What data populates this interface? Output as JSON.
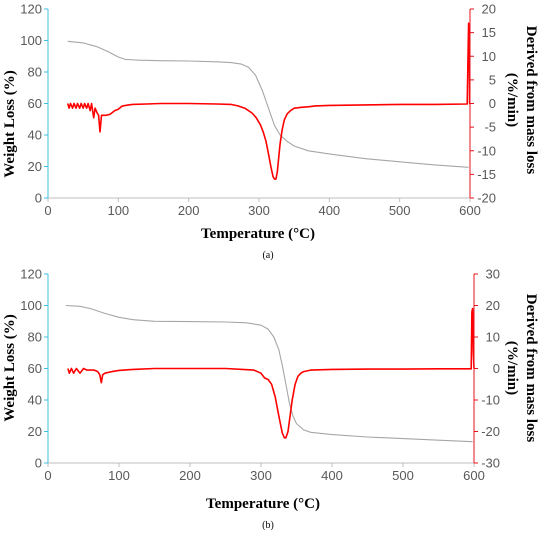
{
  "colors": {
    "left_axis": "#3fbfe3",
    "right_axis": "#e8101b",
    "weight_curve": "#a6a6a6",
    "derivative_curve": "#ff0000",
    "tick_text": "#595959"
  },
  "chart_data": [
    {
      "type": "line",
      "caption": "(a)",
      "xlabel": "Temperature (°C)",
      "ylabel": "Weight Loss (%)",
      "y2label": "Derived from mass loss (%/min)",
      "xlim": [
        0,
        600
      ],
      "ylim": [
        0,
        120
      ],
      "y2lim": [
        -20,
        20
      ],
      "xticks": [
        0,
        100,
        200,
        300,
        400,
        500,
        600
      ],
      "yticks": [
        0,
        20,
        40,
        60,
        80,
        100,
        120
      ],
      "y2ticks": [
        -20,
        -15,
        -10,
        -5,
        0,
        5,
        10,
        15,
        20
      ],
      "grid": false,
      "legend": "none",
      "series": [
        {
          "axis": "left",
          "x": [
            28,
            50,
            70,
            85,
            100,
            110,
            130,
            160,
            200,
            240,
            260,
            275,
            285,
            295,
            305,
            315,
            322,
            330,
            340,
            350,
            370,
            400,
            450,
            500,
            550,
            598
          ],
          "y": [
            99.5,
            98.5,
            96,
            93,
            89.5,
            88,
            87.5,
            87.2,
            87,
            86.5,
            86,
            85,
            83,
            78,
            68,
            55,
            46,
            40,
            36,
            33,
            30,
            28,
            25,
            23,
            21,
            19.5
          ]
        },
        {
          "axis": "right",
          "x": [
            28,
            30,
            32,
            35,
            37,
            40,
            42,
            45,
            47,
            50,
            52,
            55,
            57,
            60,
            62,
            65,
            67,
            70,
            72,
            74,
            76,
            78,
            82,
            88,
            95,
            100,
            105,
            110,
            120,
            140,
            160,
            200,
            240,
            260,
            270,
            280,
            290,
            296,
            302,
            306,
            310,
            314,
            317,
            320,
            322,
            324,
            326,
            328,
            330,
            333,
            336,
            340,
            345,
            350,
            355,
            360,
            370,
            380,
            400,
            450,
            500,
            550,
            596,
            598,
            599,
            599.5,
            600
          ],
          "y": [
            0,
            -1,
            0,
            -1,
            0,
            -1,
            0,
            -1,
            0,
            -1,
            0,
            -1,
            0,
            -1.5,
            0,
            -3,
            -1,
            -2,
            -2.5,
            -6,
            -2.5,
            -2.5,
            -2.5,
            -2.3,
            -1.5,
            -1.2,
            -0.6,
            -0.4,
            -0.2,
            -0.1,
            0,
            0,
            -0.1,
            -0.2,
            -0.5,
            -1,
            -2,
            -3,
            -4.5,
            -6,
            -8,
            -11,
            -13.5,
            -15.5,
            -16,
            -16,
            -14.5,
            -11.5,
            -8.5,
            -5.5,
            -3.5,
            -2.2,
            -1.5,
            -1,
            -0.9,
            -0.8,
            -0.7,
            -0.5,
            -0.4,
            -0.3,
            -0.2,
            -0.2,
            -0.1,
            17,
            12,
            0,
            0
          ]
        }
      ]
    },
    {
      "type": "line",
      "caption": "(b)",
      "xlabel": "Temperature (°C)",
      "ylabel": "Weight Loss (%)",
      "y2label": "Derived from mass loss (%/min)",
      "xlim": [
        0,
        600
      ],
      "ylim": [
        0,
        120
      ],
      "y2lim": [
        -30,
        30
      ],
      "xticks": [
        0,
        100,
        200,
        300,
        400,
        500,
        600
      ],
      "yticks": [
        0,
        20,
        40,
        60,
        80,
        100,
        120
      ],
      "y2ticks": [
        -30,
        -20,
        -10,
        0,
        10,
        20,
        30
      ],
      "grid": false,
      "legend": "none",
      "series": [
        {
          "axis": "left",
          "x": [
            25,
            45,
            60,
            80,
            100,
            120,
            150,
            200,
            250,
            280,
            300,
            310,
            318,
            325,
            330,
            335,
            340,
            345,
            350,
            360,
            370,
            400,
            450,
            500,
            550,
            598
          ],
          "y": [
            100,
            99.5,
            98,
            95,
            92.5,
            91,
            90,
            89.8,
            89.5,
            89,
            87.5,
            85,
            80,
            72,
            62,
            50,
            38,
            30,
            25,
            21,
            19.5,
            18,
            16.5,
            15.5,
            14.5,
            13.5
          ]
        },
        {
          "axis": "right",
          "x": [
            28,
            30,
            33,
            36,
            40,
            45,
            50,
            55,
            60,
            65,
            70,
            73,
            75,
            77,
            80,
            90,
            100,
            120,
            150,
            200,
            250,
            290,
            300,
            305,
            310,
            315,
            320,
            325,
            330,
            333,
            335,
            338,
            341,
            344,
            348,
            352,
            356,
            360,
            370,
            400,
            450,
            500,
            550,
            596,
            597,
            598,
            599,
            600
          ],
          "y": [
            0,
            -1.5,
            0,
            -1.5,
            0,
            -1.5,
            0,
            -0.5,
            -0.5,
            -0.5,
            -1,
            -2,
            -4.5,
            -2,
            -1.5,
            -1,
            -0.6,
            -0.3,
            0,
            0,
            0,
            -0.5,
            -1.5,
            -3,
            -3.5,
            -5,
            -9,
            -15,
            -20.5,
            -22,
            -22,
            -20,
            -15,
            -10,
            -5,
            -2.5,
            -1.5,
            -1,
            -0.5,
            -0.3,
            -0.2,
            -0.2,
            -0.1,
            -0.1,
            18,
            19,
            5,
            0
          ]
        }
      ]
    }
  ]
}
